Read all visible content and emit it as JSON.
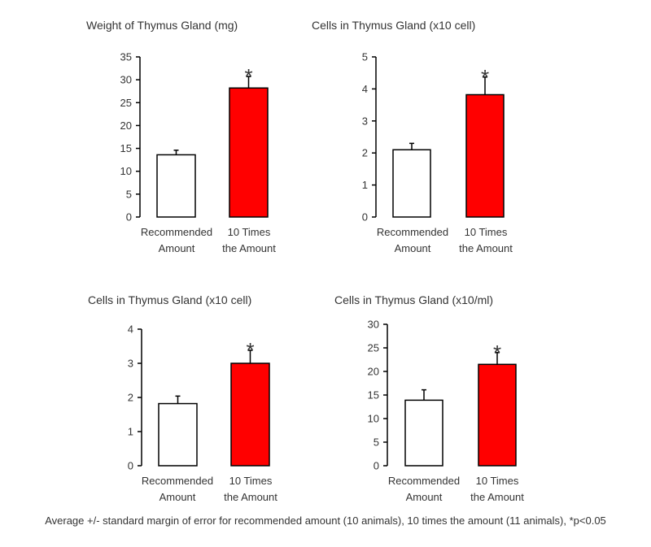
{
  "colors": {
    "recommended_fill": "#ffffff",
    "ten_times_fill": "#ff0000",
    "stroke": "#000000",
    "text": "#333333"
  },
  "chart_data": [
    {
      "type": "bar",
      "title": "Weight of Thymus Gland (mg)",
      "categories": [
        "Recommended Amount",
        "10 Times the Amount"
      ],
      "category_lines": [
        [
          "Recommended",
          "Amount"
        ],
        [
          "10 Times",
          "the Amount"
        ]
      ],
      "values": [
        13.6,
        28.2
      ],
      "errors": [
        1.0,
        2.5
      ],
      "significance": [
        "",
        "*"
      ],
      "ylim": [
        0,
        35
      ],
      "yticks": [
        0,
        5,
        10,
        15,
        20,
        25,
        30,
        35
      ]
    },
    {
      "type": "bar",
      "title": "Cells in Thymus Gland (x10 cell)",
      "categories": [
        "Recommended Amount",
        "10 Times the Amount"
      ],
      "category_lines": [
        [
          "Recommended",
          "Amount"
        ],
        [
          "10 Times",
          "the Amount"
        ]
      ],
      "values": [
        2.1,
        3.82
      ],
      "errors": [
        0.2,
        0.55
      ],
      "significance": [
        "",
        "*"
      ],
      "ylim": [
        0,
        5
      ],
      "yticks": [
        0,
        1,
        2,
        3,
        4,
        5
      ]
    },
    {
      "type": "bar",
      "title": "Cells in Thymus Gland (x10 cell)",
      "categories": [
        "Recommended Amount",
        "10 Times the Amount"
      ],
      "category_lines": [
        [
          "Recommended",
          "Amount"
        ],
        [
          "10 Times",
          "the Amount"
        ]
      ],
      "values": [
        1.82,
        3.0
      ],
      "errors": [
        0.22,
        0.38
      ],
      "significance": [
        "",
        "*"
      ],
      "ylim": [
        0,
        4
      ],
      "yticks": [
        0,
        1,
        2,
        3,
        4
      ]
    },
    {
      "type": "bar",
      "title": "Cells in Thymus Gland (x10/ml)",
      "categories": [
        "Recommended Amount",
        "10 Times the Amount"
      ],
      "category_lines": [
        [
          "Recommended",
          "Amount"
        ],
        [
          "10 Times",
          "the Amount"
        ]
      ],
      "values": [
        13.9,
        21.5
      ],
      "errors": [
        2.2,
        2.5
      ],
      "significance": [
        "",
        "*"
      ],
      "ylim": [
        0,
        30
      ],
      "yticks": [
        0,
        5,
        10,
        15,
        20,
        25,
        30
      ]
    }
  ],
  "footnote": "Average +/- standard margin of error for recommended amount (10 animals), 10 times the amount (11 animals), *p<0.05"
}
